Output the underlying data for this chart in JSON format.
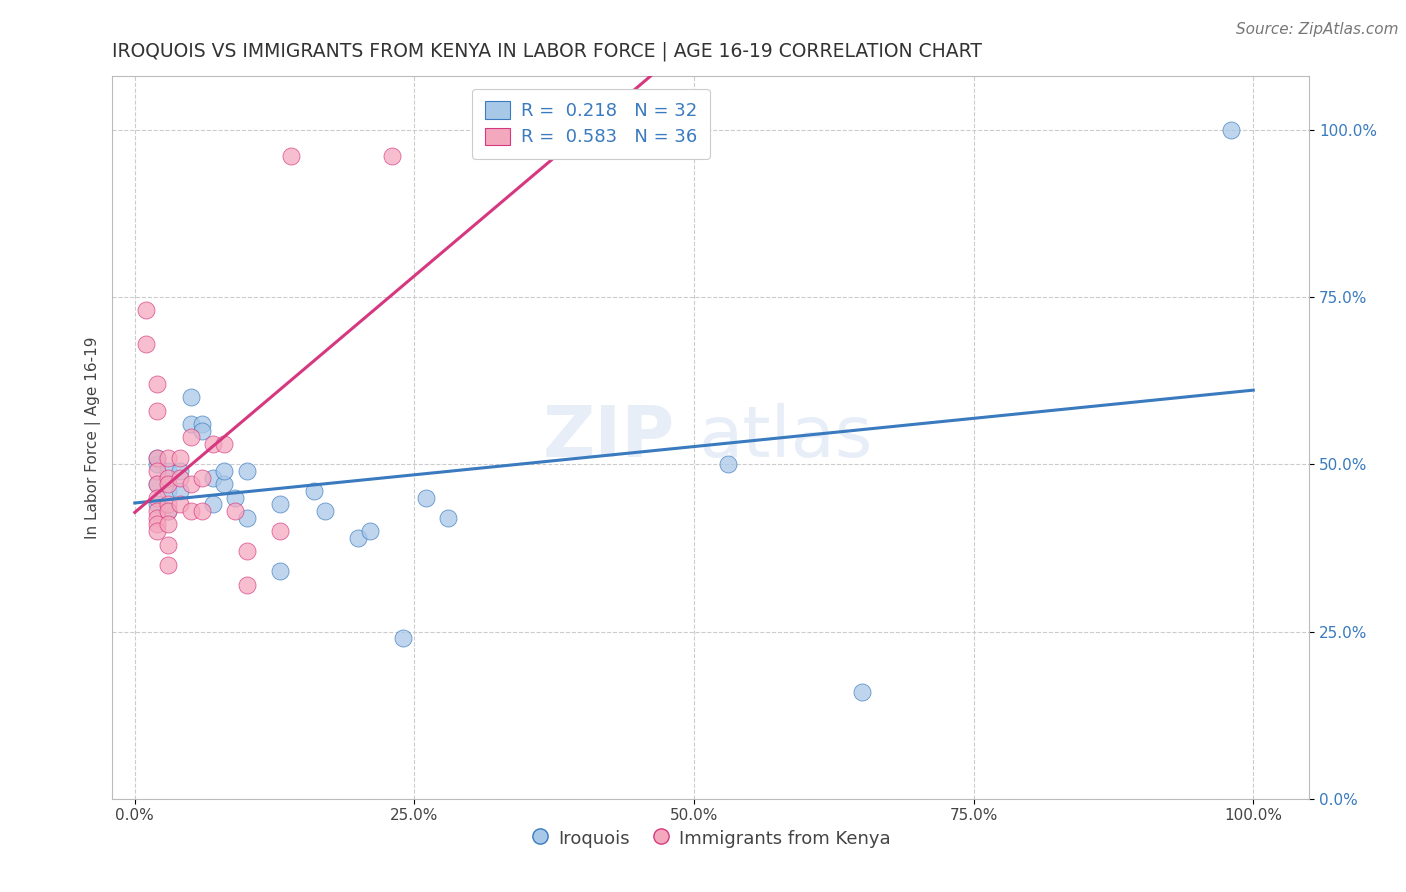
{
  "title": "IROQUOIS VS IMMIGRANTS FROM KENYA IN LABOR FORCE | AGE 16-19 CORRELATION CHART",
  "source_text": "Source: ZipAtlas.com",
  "ylabel": "In Labor Force | Age 16-19",
  "xtick_vals": [
    0.0,
    0.25,
    0.5,
    0.75,
    1.0
  ],
  "ytick_vals": [
    0.0,
    0.25,
    0.5,
    0.75,
    1.0
  ],
  "xlabel_ticks": [
    "0.0%",
    "25.0%",
    "50.0%",
    "75.0%",
    "100.0%"
  ],
  "ylabel_ticks": [
    "0.0%",
    "25.0%",
    "50.0%",
    "75.0%",
    "100.0%"
  ],
  "xlim": [
    -0.02,
    1.05
  ],
  "ylim": [
    0.0,
    1.08
  ],
  "R1": 0.218,
  "N1": 32,
  "R2": 0.583,
  "N2": 36,
  "color_blue": "#a8c8e8",
  "color_pink": "#f4a8be",
  "trendline_blue": "#3a7abf",
  "trendline_pink": "#d63880",
  "watermark_zip": "ZIP",
  "watermark_atlas": "atlas",
  "iroquois_points": [
    [
      0.02,
      0.47
    ],
    [
      0.02,
      0.5
    ],
    [
      0.02,
      0.51
    ],
    [
      0.02,
      0.44
    ],
    [
      0.03,
      0.49
    ],
    [
      0.03,
      0.43
    ],
    [
      0.03,
      0.46
    ],
    [
      0.04,
      0.46
    ],
    [
      0.04,
      0.49
    ],
    [
      0.05,
      0.56
    ],
    [
      0.05,
      0.6
    ],
    [
      0.06,
      0.56
    ],
    [
      0.06,
      0.55
    ],
    [
      0.07,
      0.48
    ],
    [
      0.07,
      0.44
    ],
    [
      0.08,
      0.47
    ],
    [
      0.08,
      0.49
    ],
    [
      0.09,
      0.45
    ],
    [
      0.1,
      0.49
    ],
    [
      0.1,
      0.42
    ],
    [
      0.13,
      0.44
    ],
    [
      0.13,
      0.34
    ],
    [
      0.16,
      0.46
    ],
    [
      0.17,
      0.43
    ],
    [
      0.2,
      0.39
    ],
    [
      0.21,
      0.4
    ],
    [
      0.24,
      0.24
    ],
    [
      0.26,
      0.45
    ],
    [
      0.28,
      0.42
    ],
    [
      0.53,
      0.5
    ],
    [
      0.65,
      0.16
    ],
    [
      0.98,
      1.0
    ]
  ],
  "kenya_points": [
    [
      0.01,
      0.73
    ],
    [
      0.01,
      0.68
    ],
    [
      0.02,
      0.62
    ],
    [
      0.02,
      0.58
    ],
    [
      0.02,
      0.51
    ],
    [
      0.02,
      0.49
    ],
    [
      0.02,
      0.47
    ],
    [
      0.02,
      0.45
    ],
    [
      0.02,
      0.43
    ],
    [
      0.02,
      0.42
    ],
    [
      0.02,
      0.41
    ],
    [
      0.02,
      0.4
    ],
    [
      0.03,
      0.51
    ],
    [
      0.03,
      0.48
    ],
    [
      0.03,
      0.47
    ],
    [
      0.03,
      0.44
    ],
    [
      0.03,
      0.43
    ],
    [
      0.03,
      0.41
    ],
    [
      0.03,
      0.38
    ],
    [
      0.03,
      0.35
    ],
    [
      0.04,
      0.51
    ],
    [
      0.04,
      0.48
    ],
    [
      0.04,
      0.44
    ],
    [
      0.05,
      0.54
    ],
    [
      0.05,
      0.47
    ],
    [
      0.05,
      0.43
    ],
    [
      0.06,
      0.48
    ],
    [
      0.06,
      0.43
    ],
    [
      0.07,
      0.53
    ],
    [
      0.08,
      0.53
    ],
    [
      0.09,
      0.43
    ],
    [
      0.1,
      0.37
    ],
    [
      0.1,
      0.32
    ],
    [
      0.13,
      0.4
    ],
    [
      0.14,
      0.96
    ],
    [
      0.23,
      0.96
    ]
  ],
  "title_fontsize": 13.5,
  "axis_label_fontsize": 11,
  "tick_fontsize": 11,
  "legend_fontsize": 13,
  "source_fontsize": 11,
  "watermark_fontsize_zip": 52,
  "watermark_fontsize_atlas": 52,
  "watermark_alpha": 0.12,
  "grid_color": "#cccccc",
  "grid_style": "--",
  "background_color": "#ffffff"
}
